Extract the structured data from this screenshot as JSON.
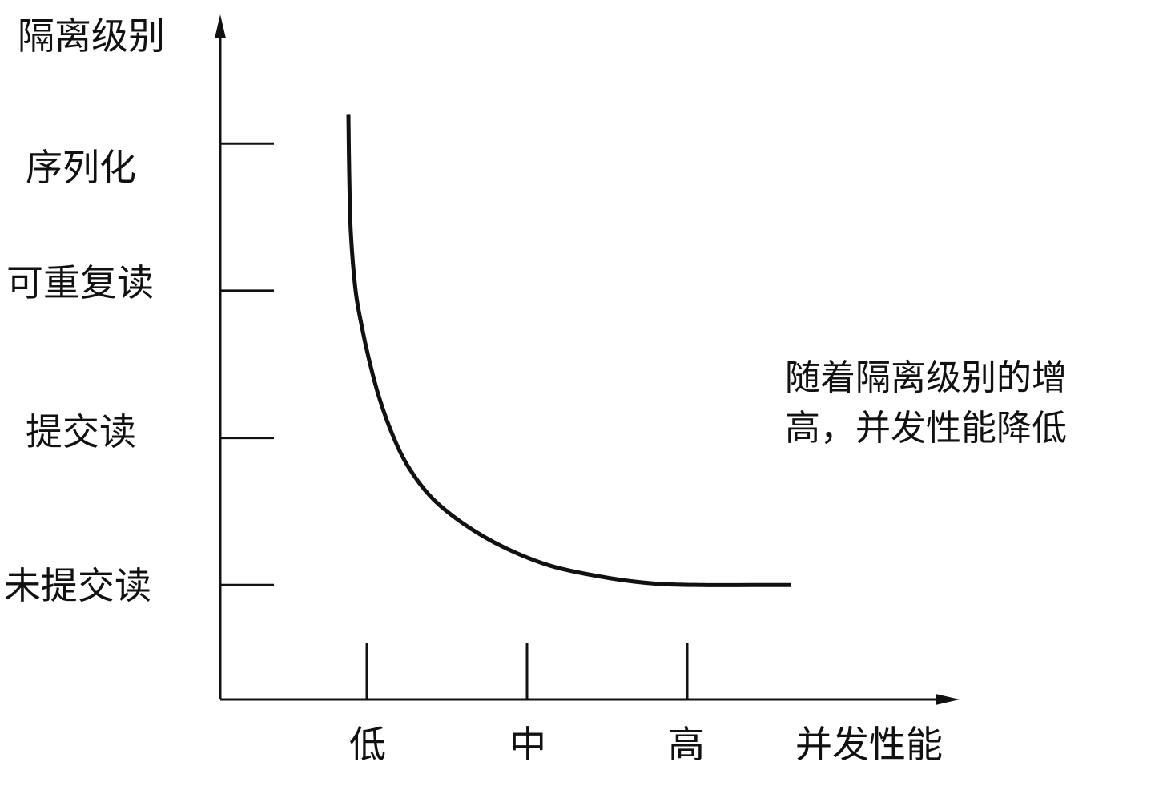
{
  "chart_data": {
    "type": "line",
    "ylabel": "隔离级别",
    "xlabel": "并发性能",
    "y_categories": [
      "未提交读",
      "提交读",
      "可重复读",
      "序列化"
    ],
    "x_categories": [
      "低",
      "中",
      "高"
    ],
    "annotation": [
      "随着隔离级别的增",
      "高，并发性能降低"
    ],
    "series": [
      {
        "x": [
          0.885,
          0.89,
          0.9,
          0.93,
          0.97,
          1.01,
          1.07,
          1.15,
          1.25,
          1.4,
          1.6,
          1.85,
          2.15,
          2.5,
          2.8,
          3.1,
          3.4,
          3.65
        ],
        "y": [
          4.2,
          3.8,
          3.4,
          3.0,
          2.75,
          2.55,
          2.3,
          2.05,
          1.82,
          1.6,
          1.42,
          1.26,
          1.13,
          1.05,
          1.01,
          1.0,
          1.0,
          1.0
        ]
      }
    ],
    "grid": false,
    "color": "#111111"
  }
}
